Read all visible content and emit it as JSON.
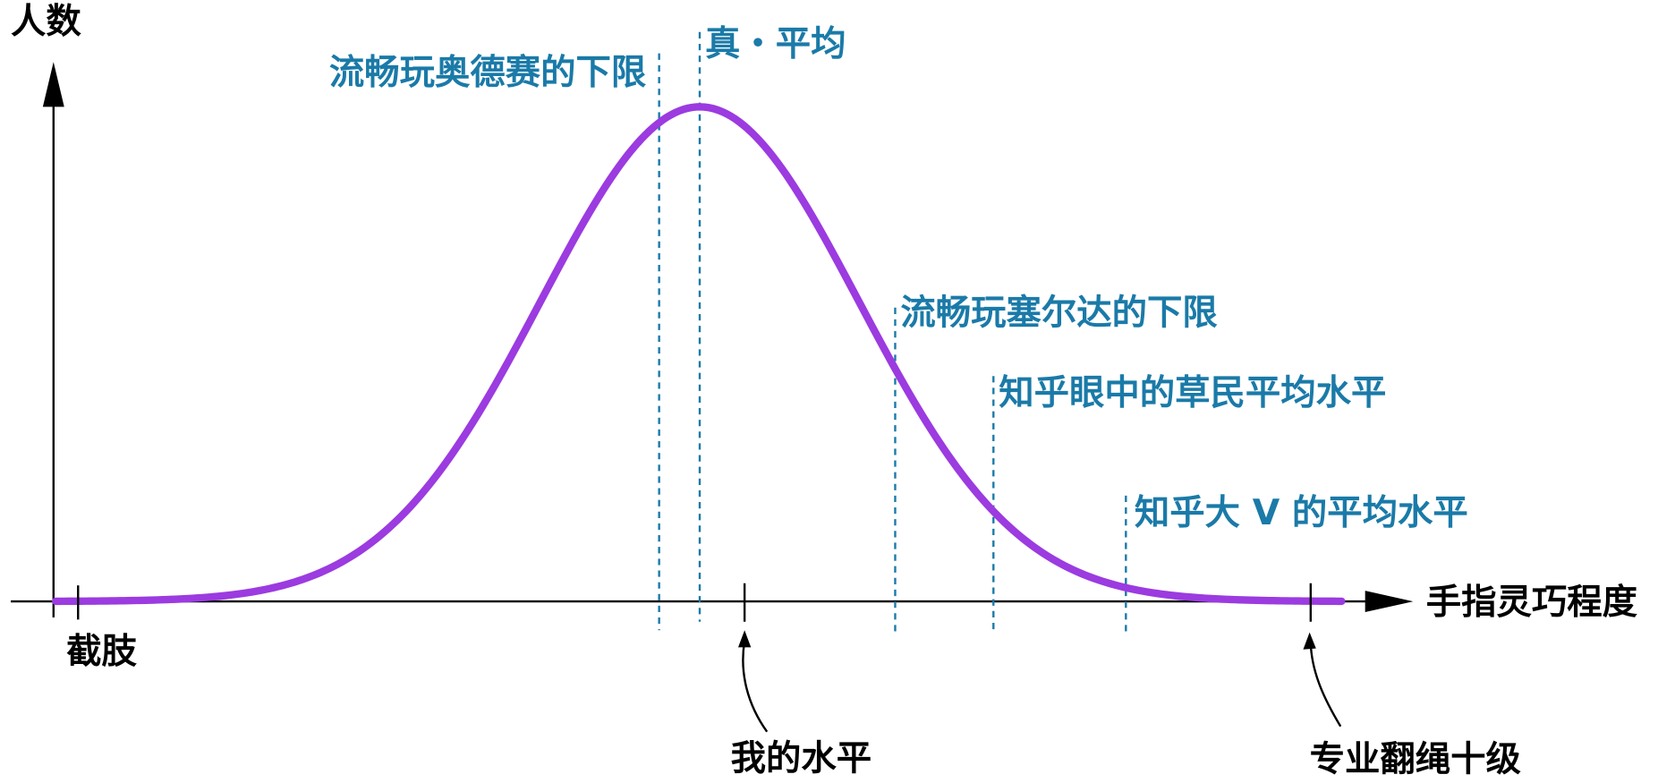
{
  "axes": {
    "y_label": "人数",
    "x_label": "手指灵巧程度"
  },
  "markers": [
    {
      "label": "流畅玩奥德赛的下限"
    },
    {
      "label": "真・平均"
    },
    {
      "label": "流畅玩塞尔达的下限"
    },
    {
      "label": "知乎眼中的草民平均水平"
    },
    {
      "label": "知乎大 V 的平均水平"
    }
  ],
  "ticks": [
    {
      "label": "截肢"
    },
    {
      "label": "我的水平"
    },
    {
      "label": "专业翻绳十级"
    }
  ]
}
